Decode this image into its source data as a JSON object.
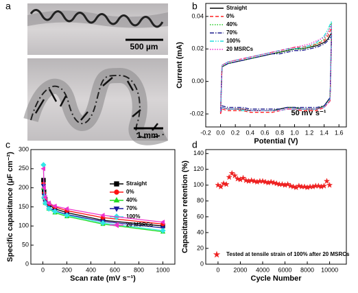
{
  "panel_a": {
    "label": "a",
    "scale_bars": [
      "500 µm",
      "1 mm"
    ]
  },
  "chart_data": [
    {
      "type": "line",
      "panel_label": "b",
      "xlabel": "Potential (V)",
      "ylabel": "Current (mA)",
      "annotation": "50 mV s⁻¹",
      "xlim": [
        -0.2,
        1.7
      ],
      "ylim": [
        -0.028,
        0.048
      ],
      "xticks": [
        -0.2,
        {
          "value": 0,
          "label": "0.0"
        },
        0.2,
        0.4,
        0.6,
        0.8,
        {
          "value": 1,
          "label": "1.0"
        },
        1.2,
        1.4,
        1.6
      ],
      "yticks": [
        -0.02,
        {
          "value": 0,
          "label": "0.00"
        },
        0.02,
        0.04
      ],
      "legend": "upper-left",
      "x": [
        0,
        0.02,
        0.1,
        0.2,
        0.3,
        0.4,
        0.5,
        0.6,
        0.7,
        0.8,
        0.9,
        1.0,
        1.1,
        1.2,
        1.3,
        1.4,
        1.45,
        1.5,
        1.48,
        1.4,
        1.3,
        1.2,
        1.1,
        1.0,
        0.9,
        0.8,
        0.7,
        0.6,
        0.5,
        0.4,
        0.3,
        0.2,
        0.1,
        0.02,
        0
      ],
      "series": [
        {
          "name": "Straight",
          "color": "#000000",
          "dash": "solid",
          "values": [
            -0.019,
            0.009,
            0.011,
            0.012,
            0.013,
            0.014,
            0.015,
            0.016,
            0.017,
            0.018,
            0.019,
            0.02,
            0.02,
            0.021,
            0.022,
            0.024,
            0.026,
            0.03,
            -0.01,
            -0.015,
            -0.017,
            -0.017,
            -0.017,
            -0.016,
            -0.016,
            -0.017,
            -0.018,
            -0.018,
            -0.018,
            -0.018,
            -0.017,
            -0.017,
            -0.017,
            -0.016,
            -0.019
          ]
        },
        {
          "name": "0%",
          "color": "#ff2020",
          "dash": "dashed",
          "values": [
            -0.02,
            0.01,
            0.012,
            0.013,
            0.014,
            0.015,
            0.016,
            0.017,
            0.018,
            0.019,
            0.02,
            0.021,
            0.021,
            0.022,
            0.023,
            0.025,
            0.028,
            0.033,
            -0.012,
            -0.016,
            -0.018,
            -0.018,
            -0.018,
            -0.017,
            -0.017,
            -0.018,
            -0.019,
            -0.019,
            -0.019,
            -0.019,
            -0.018,
            -0.018,
            -0.018,
            -0.017,
            -0.02
          ]
        },
        {
          "name": "40%",
          "color": "#22cc22",
          "dash": "dotted",
          "values": [
            -0.019,
            0.009,
            0.011,
            0.012,
            0.013,
            0.014,
            0.015,
            0.016,
            0.017,
            0.018,
            0.019,
            0.02,
            0.02,
            0.021,
            0.023,
            0.026,
            0.03,
            0.036,
            -0.011,
            -0.015,
            -0.017,
            -0.017,
            -0.017,
            -0.016,
            -0.016,
            -0.017,
            -0.018,
            -0.018,
            -0.018,
            -0.018,
            -0.017,
            -0.017,
            -0.017,
            -0.016,
            -0.019
          ]
        },
        {
          "name": "70%",
          "color": "#1a1a8c",
          "dash": "dashdot",
          "values": [
            -0.018,
            0.009,
            0.011,
            0.012,
            0.013,
            0.014,
            0.015,
            0.016,
            0.017,
            0.017,
            0.018,
            0.019,
            0.019,
            0.02,
            0.021,
            0.023,
            0.025,
            0.028,
            -0.01,
            -0.015,
            -0.016,
            -0.016,
            -0.016,
            -0.016,
            -0.016,
            -0.017,
            -0.017,
            -0.017,
            -0.017,
            -0.017,
            -0.016,
            -0.016,
            -0.016,
            -0.015,
            -0.018
          ]
        },
        {
          "name": "100%",
          "color": "#22dddd",
          "dash": "dashdotdot",
          "values": [
            -0.019,
            0.01,
            0.012,
            0.013,
            0.014,
            0.015,
            0.016,
            0.017,
            0.018,
            0.019,
            0.02,
            0.02,
            0.021,
            0.022,
            0.024,
            0.028,
            0.032,
            0.037,
            -0.011,
            -0.016,
            -0.017,
            -0.017,
            -0.017,
            -0.017,
            -0.017,
            -0.018,
            -0.018,
            -0.018,
            -0.018,
            -0.018,
            -0.018,
            -0.017,
            -0.017,
            -0.016,
            -0.019
          ]
        },
        {
          "name": "20 MSRCs",
          "color": "#ee22cc",
          "dash": "dotted",
          "values": [
            -0.019,
            0.01,
            0.012,
            0.013,
            0.014,
            0.015,
            0.016,
            0.017,
            0.018,
            0.019,
            0.02,
            0.021,
            0.022,
            0.023,
            0.025,
            0.027,
            0.03,
            0.035,
            -0.012,
            -0.016,
            -0.017,
            -0.017,
            -0.017,
            -0.017,
            -0.017,
            -0.018,
            -0.018,
            -0.018,
            -0.018,
            -0.018,
            -0.017,
            -0.017,
            -0.017,
            -0.016,
            -0.019
          ]
        }
      ]
    },
    {
      "type": "line",
      "panel_label": "c",
      "xlabel": "Scan rate (mV s⁻¹)",
      "ylabel": "Specific capacitance (μF cm⁻²)",
      "xlim": [
        -100,
        1100
      ],
      "ylim": [
        0,
        300
      ],
      "xticks": [
        0,
        200,
        400,
        600,
        800,
        1000
      ],
      "yticks": [
        0,
        50,
        100,
        150,
        200,
        250,
        300
      ],
      "legend": "upper-right",
      "x": [
        5,
        10,
        20,
        50,
        100,
        200,
        500,
        1000
      ],
      "series": [
        {
          "name": "Straight",
          "color": "#000000",
          "marker": "square",
          "values": [
            220,
            190,
            170,
            155,
            145,
            135,
            115,
            100
          ]
        },
        {
          "name": "0%",
          "color": "#ff1010",
          "marker": "circle",
          "values": [
            210,
            185,
            170,
            158,
            150,
            140,
            122,
            105
          ]
        },
        {
          "name": "40%",
          "color": "#22dd22",
          "marker": "triangle-up",
          "values": [
            200,
            175,
            160,
            145,
            135,
            125,
            105,
            85
          ]
        },
        {
          "name": "70%",
          "color": "#1a1a9c",
          "marker": "triangle-down",
          "values": [
            205,
            180,
            163,
            148,
            140,
            130,
            112,
            95
          ]
        },
        {
          "name": "100%",
          "color": "#33e6e6",
          "marker": "diamond",
          "values": [
            260,
            175,
            160,
            145,
            138,
            128,
            108,
            88
          ]
        },
        {
          "name": "20 MSRCs",
          "color": "#ee33cc",
          "marker": "triangle-left",
          "values": [
            250,
            200,
            175,
            160,
            152,
            145,
            128,
            110
          ]
        }
      ]
    },
    {
      "type": "scatter",
      "panel_label": "d",
      "xlabel": "Cycle Number",
      "ylabel": "Capacitance retention (%)",
      "xlim": [
        -1100,
        11500
      ],
      "ylim": [
        0,
        145
      ],
      "xticks": [
        0,
        2000,
        4000,
        6000,
        8000,
        10000
      ],
      "yticks": [
        0,
        20,
        40,
        60,
        80,
        100,
        120,
        140
      ],
      "legend": "lower-left",
      "x": [
        0,
        250,
        500,
        750,
        1000,
        1250,
        1500,
        1750,
        2000,
        2250,
        2500,
        2750,
        3000,
        3250,
        3500,
        3750,
        4000,
        4250,
        4500,
        4750,
        5000,
        5250,
        5500,
        5750,
        6000,
        6250,
        6500,
        6750,
        7000,
        7250,
        7500,
        7750,
        8000,
        8250,
        8500,
        8750,
        9000,
        9250,
        9500,
        9750,
        10000
      ],
      "series": [
        {
          "name": "Tested at tensile strain of 100% after 20 MSRCs",
          "color": "#ee2020",
          "marker": "star",
          "values": [
            100,
            98,
            102,
            101,
            110,
            115,
            112,
            108,
            107,
            109,
            106,
            105,
            106,
            105,
            104,
            105,
            105,
            104,
            103,
            104,
            103,
            102,
            101,
            101,
            100,
            101,
            99,
            98,
            97,
            99,
            98,
            98,
            97,
            98,
            98,
            99,
            99,
            98,
            99,
            105,
            100
          ]
        }
      ]
    }
  ]
}
